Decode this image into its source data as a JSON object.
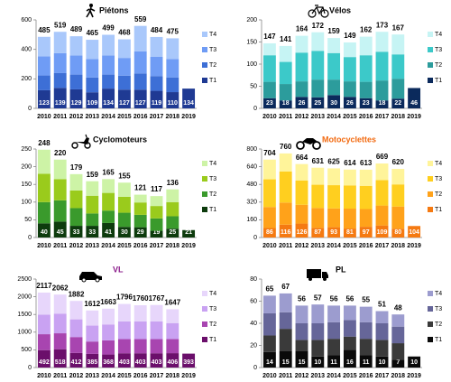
{
  "chart_data": [
    {
      "type": "bar",
      "stacked": true,
      "title": "Piétons",
      "title_color": "#000000",
      "categories": [
        "2010",
        "2011",
        "2012",
        "2013",
        "2014",
        "2015",
        "2016",
        "2017",
        "2018",
        "2019"
      ],
      "series": [
        {
          "name": "T1",
          "color": "#1f3a93",
          "values": [
            123,
            139,
            129,
            109,
            134,
            127,
            127,
            119,
            110,
            134
          ]
        },
        {
          "name": "T2",
          "color": "#3d6fd6",
          "values": [
            100,
            100,
            100,
            100,
            95,
            95,
            110,
            100,
            100,
            null
          ]
        },
        {
          "name": "T3",
          "color": "#6f9cf5",
          "values": [
            130,
            135,
            130,
            125,
            130,
            120,
            150,
            130,
            125,
            null
          ]
        },
        {
          "name": "T4",
          "color": "#a9c8fb",
          "values": [
            132,
            145,
            130,
            131,
            140,
            126,
            172,
            135,
            140,
            null
          ]
        }
      ],
      "totals": [
        485,
        519,
        489,
        465,
        499,
        468,
        559,
        484,
        475,
        null
      ],
      "ylim": [
        0,
        600
      ],
      "yticks": [
        0,
        200,
        400,
        600
      ]
    },
    {
      "type": "bar",
      "stacked": true,
      "title": "Vélos",
      "title_color": "#000000",
      "categories": [
        "2010",
        "2011",
        "2012",
        "2013",
        "2014",
        "2015",
        "2016",
        "2017",
        "2018",
        "2019"
      ],
      "series": [
        {
          "name": "T1",
          "color": "#0b2a5c",
          "values": [
            23,
            18,
            26,
            25,
            30,
            26,
            23,
            18,
            22,
            46
          ]
        },
        {
          "name": "T2",
          "color": "#2c9c9c",
          "values": [
            37,
            37,
            35,
            40,
            35,
            35,
            37,
            45,
            45,
            null
          ]
        },
        {
          "name": "T3",
          "color": "#3cc9c9",
          "values": [
            60,
            50,
            65,
            65,
            60,
            55,
            60,
            65,
            55,
            null
          ]
        },
        {
          "name": "T4",
          "color": "#c6f4f4",
          "values": [
            27,
            36,
            38,
            42,
            34,
            33,
            42,
            45,
            45,
            null
          ]
        }
      ],
      "totals": [
        147,
        141,
        164,
        172,
        159,
        149,
        162,
        173,
        167,
        null
      ],
      "ylim": [
        0,
        200
      ],
      "yticks": [
        0,
        50,
        100,
        150,
        200
      ]
    },
    {
      "type": "bar",
      "stacked": true,
      "title": "Cyclomoteurs",
      "title_color": "#000000",
      "categories": [
        "2010",
        "2011",
        "2012",
        "2013",
        "2014",
        "2015",
        "2016",
        "2017",
        "2018",
        "2019"
      ],
      "series": [
        {
          "name": "T1",
          "color": "#0d3b0d",
          "values": [
            40,
            45,
            33,
            33,
            41,
            30,
            29,
            19,
            25,
            21
          ]
        },
        {
          "name": "T2",
          "color": "#3a9a2c",
          "values": [
            60,
            60,
            50,
            35,
            35,
            40,
            35,
            35,
            35,
            null
          ]
        },
        {
          "name": "T3",
          "color": "#9acb1c",
          "values": [
            80,
            60,
            50,
            50,
            50,
            45,
            35,
            35,
            40,
            null
          ]
        },
        {
          "name": "T4",
          "color": "#cdf3a6",
          "values": [
            68,
            55,
            46,
            41,
            39,
            40,
            22,
            28,
            36,
            null
          ]
        }
      ],
      "totals": [
        248,
        220,
        179,
        159,
        165,
        155,
        121,
        117,
        136,
        null
      ],
      "ylim": [
        0,
        250
      ],
      "yticks": [
        0,
        50,
        100,
        150,
        200,
        250
      ]
    },
    {
      "type": "bar",
      "stacked": true,
      "title": "Motocyclettes",
      "title_color": "#f26a10",
      "categories": [
        "2010",
        "2011",
        "2012",
        "2013",
        "2014",
        "2015",
        "2016",
        "2017",
        "2018",
        "2019"
      ],
      "series": [
        {
          "name": "T1",
          "color": "#f57a12",
          "values": [
            86,
            116,
            126,
            87,
            93,
            81,
            97,
            109,
            80,
            104
          ]
        },
        {
          "name": "T2",
          "color": "#ffa21a",
          "values": [
            190,
            200,
            170,
            180,
            170,
            180,
            160,
            180,
            200,
            null
          ]
        },
        {
          "name": "T3",
          "color": "#ffcf1f",
          "values": [
            250,
            280,
            220,
            210,
            210,
            210,
            210,
            230,
            200,
            null
          ]
        },
        {
          "name": "T4",
          "color": "#fff49a",
          "values": [
            178,
            164,
            148,
            154,
            152,
            143,
            146,
            150,
            140,
            null
          ]
        }
      ],
      "totals": [
        704,
        760,
        664,
        631,
        625,
        614,
        613,
        669,
        620,
        null
      ],
      "ylim": [
        0,
        800
      ],
      "yticks": [
        0,
        160,
        320,
        480,
        640,
        800
      ]
    },
    {
      "type": "bar",
      "stacked": true,
      "title": "VL",
      "title_color": "#8b1c8b",
      "categories": [
        "2010",
        "2011",
        "2012",
        "2013",
        "2014",
        "2015",
        "2016",
        "2017",
        "2018",
        "2019"
      ],
      "series": [
        {
          "name": "T1",
          "color": "#6b0f6b",
          "values": [
            492,
            518,
            412,
            385,
            368,
            403,
            403,
            403,
            406,
            393
          ]
        },
        {
          "name": "T2",
          "color": "#a845b0",
          "values": [
            450,
            450,
            450,
            350,
            400,
            400,
            400,
            400,
            400,
            null
          ]
        },
        {
          "name": "T3",
          "color": "#c9a2f2",
          "values": [
            550,
            550,
            500,
            450,
            450,
            500,
            500,
            500,
            450,
            null
          ]
        },
        {
          "name": "T4",
          "color": "#e7d6fb",
          "values": [
            625,
            544,
            520,
            427,
            445,
            493,
            457,
            464,
            391,
            null
          ]
        }
      ],
      "totals": [
        2117,
        2062,
        1882,
        1612,
        1663,
        1796,
        1760,
        1767,
        1647,
        null
      ],
      "ylim": [
        0,
        2500
      ],
      "yticks": [
        0,
        500,
        1000,
        1500,
        2000,
        2500
      ]
    },
    {
      "type": "bar",
      "stacked": true,
      "title": "PL",
      "title_color": "#000000",
      "categories": [
        "2010",
        "2011",
        "2012",
        "2013",
        "2014",
        "2015",
        "2016",
        "2017",
        "2018",
        "2019"
      ],
      "series": [
        {
          "name": "T1",
          "color": "#0a0a0a",
          "values": [
            14,
            15,
            15,
            10,
            11,
            16,
            11,
            10,
            7,
            10
          ]
        },
        {
          "name": "T2",
          "color": "#3a3a3a",
          "values": [
            15,
            20,
            10,
            15,
            15,
            12,
            15,
            15,
            15,
            null
          ]
        },
        {
          "name": "T3",
          "color": "#666699",
          "values": [
            20,
            15,
            15,
            15,
            15,
            15,
            15,
            15,
            15,
            null
          ]
        },
        {
          "name": "T4",
          "color": "#9c9ccf",
          "values": [
            16,
            17,
            16,
            17,
            15,
            13,
            14,
            11,
            11,
            null
          ]
        }
      ],
      "totals": [
        65,
        67,
        56,
        57,
        56,
        56,
        55,
        51,
        48,
        null
      ],
      "ylim": [
        0,
        80
      ],
      "yticks": [
        0,
        20,
        40,
        60,
        80
      ]
    }
  ]
}
